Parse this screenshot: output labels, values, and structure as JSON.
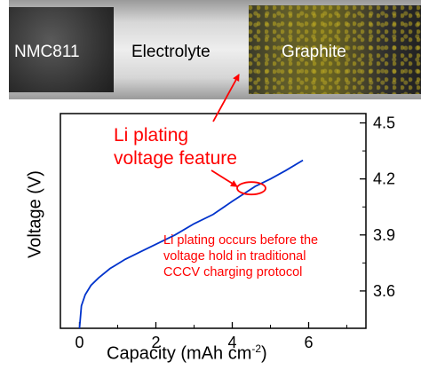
{
  "photo": {
    "labels": {
      "cathode": "NMC811",
      "electrolyte": "Electrolyte",
      "anode": "Graphite"
    }
  },
  "annotations": {
    "feature_line1": "Li plating",
    "feature_line2": "voltage feature",
    "note_line1": "Li plating occurs before the",
    "note_line2": "voltage hold in traditional",
    "note_line3": "CCCV charging protocol"
  },
  "colors": {
    "curve": "#0033cc",
    "annotation": "#ff0000",
    "axis": "#000000"
  },
  "chart_data": {
    "type": "line",
    "xlabel": "Capacity (mAh cm",
    "xlabel_sup": "-2",
    "xlabel_close": ")",
    "ylabel": "Voltage (V)",
    "xlim": [
      -0.5,
      7.5
    ],
    "ylim": [
      3.4,
      4.55
    ],
    "xticks": [
      0,
      2,
      4,
      6
    ],
    "yticks": [
      3.6,
      3.9,
      4.2,
      4.5
    ],
    "ytick_labels": [
      "3.6",
      "3.9",
      "4.2",
      "4.5"
    ],
    "grid": false,
    "series": [
      {
        "x": [
          0.0,
          0.05,
          0.15,
          0.3,
          0.5,
          0.8,
          1.2,
          1.6,
          2.0,
          2.5,
          3.0,
          3.5,
          4.0,
          4.3,
          4.6,
          5.0,
          5.4,
          5.85
        ],
        "y": [
          3.4,
          3.52,
          3.58,
          3.63,
          3.67,
          3.72,
          3.77,
          3.81,
          3.85,
          3.9,
          3.96,
          4.01,
          4.08,
          4.12,
          4.16,
          4.2,
          4.245,
          4.3
        ]
      }
    ],
    "highlight": {
      "x": 4.5,
      "y": 4.15
    }
  }
}
